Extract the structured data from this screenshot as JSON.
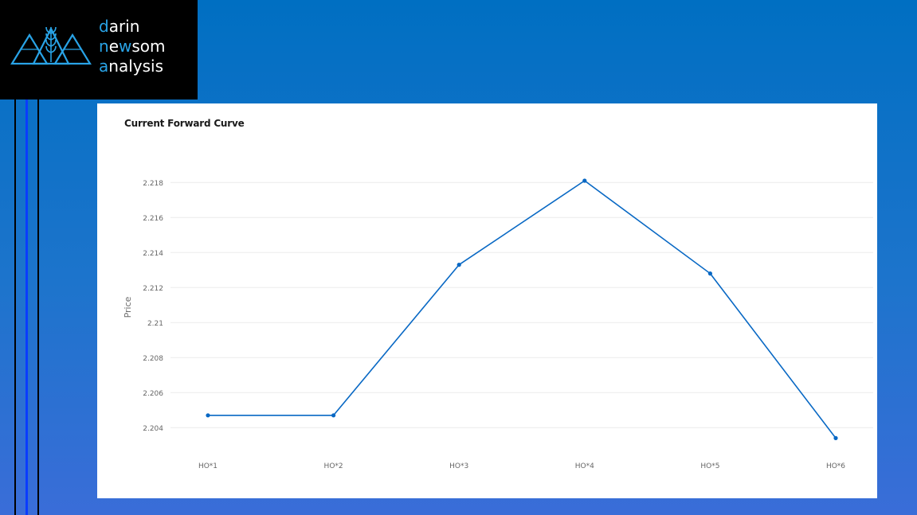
{
  "brand": {
    "lines": [
      {
        "accent": "d",
        "rest": "arin"
      },
      {
        "accent": "n",
        "mid": "e",
        "accent2": "w",
        "rest": "som"
      },
      {
        "accent": "a",
        "rest": "nalysis"
      }
    ],
    "accent_color": "#29a3e6"
  },
  "chart_data": {
    "type": "line",
    "title": "Current Forward Curve",
    "xlabel": "",
    "ylabel": "Price",
    "categories": [
      "HO*1",
      "HO*2",
      "HO*3",
      "HO*4",
      "HO*5",
      "HO*6"
    ],
    "series": [
      {
        "values": [
          2.2047,
          2.2047,
          2.2133,
          2.2181,
          2.2128,
          2.2034
        ],
        "color": "#0868c4"
      }
    ],
    "yticks": [
      "2.204",
      "2.206",
      "2.208",
      "2.21",
      "2.212",
      "2.214",
      "2.216",
      "2.218"
    ],
    "ylim": [
      2.2026,
      2.2186
    ],
    "grid": true,
    "legend": "none"
  }
}
